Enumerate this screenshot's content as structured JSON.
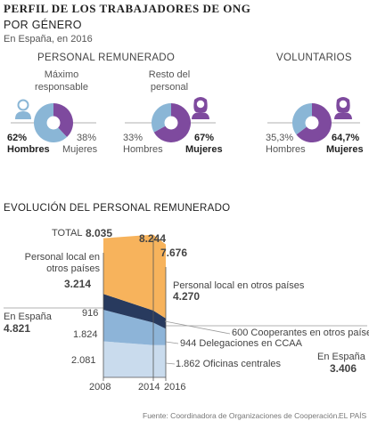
{
  "header": {
    "title": "PERFIL DE LOS TRABAJADORES DE ONG",
    "subtitle": "POR GÉNERO",
    "note": "En España, en 2016"
  },
  "sections": {
    "remunerado": "PERSONAL REMUNERADO",
    "voluntarios": "VOLUNTARIOS",
    "evolucion": "EVOLUCIÓN DEL PERSONAL REMUNERADO"
  },
  "colors": {
    "blue": "#8ab6d6",
    "purple": "#7e4a9e",
    "orange": "#f7b35c",
    "navy": "#283a5e",
    "midblue": "#8db4d8",
    "lightblue": "#c9dbed"
  },
  "chart_data": [
    {
      "type": "pie",
      "title": "Máximo responsable",
      "slices": [
        {
          "label": "Hombres",
          "value": 62,
          "display": "62%"
        },
        {
          "label": "Mujeres",
          "value": 38,
          "display": "38%"
        }
      ]
    },
    {
      "type": "pie",
      "title": "Resto del personal",
      "slices": [
        {
          "label": "Hombres",
          "value": 33,
          "display": "33%"
        },
        {
          "label": "Mujeres",
          "value": 67,
          "display": "67%"
        }
      ]
    },
    {
      "type": "pie",
      "title": "",
      "slices": [
        {
          "label": "Hombres",
          "value": 35.3,
          "display": "35,3%"
        },
        {
          "label": "Mujeres",
          "value": 64.7,
          "display": "64,7%"
        }
      ]
    },
    {
      "type": "area",
      "title": "EVOLUCIÓN DEL PERSONAL REMUNERADO",
      "x": [
        "2008",
        "2014",
        "2016"
      ],
      "total_label": "TOTAL",
      "totals": [
        "8.035",
        "8.244",
        "7.676"
      ],
      "en_espana_label": "En España",
      "en_espana_2008": "4.821",
      "en_espana_2016": "3.406",
      "local_label": "Personal local en otros países",
      "local_label_2008": "Personal local en otros países",
      "local_2008": "3.214",
      "local_2016": "4.270",
      "series": [
        {
          "name": "Oficinas centrales",
          "values": [
            2081,
            1862,
            1862
          ],
          "label_2008": "2.081",
          "label_2016": "1.862"
        },
        {
          "name": "Delegaciones en CCAA",
          "values": [
            1824,
            1300,
            944
          ],
          "label_2008": "1.824",
          "label_2016": "944"
        },
        {
          "name": "Cooperantes en otros países",
          "values": [
            916,
            700,
            600
          ],
          "label_2008": "916",
          "label_2016": "600"
        },
        {
          "name": "Personal local en otros países",
          "values": [
            3214,
            4382,
            4270
          ]
        }
      ],
      "label_cooperantes": "600 Cooperantes en otros países",
      "label_delegaciones": "944 Delegaciones en CCAA",
      "label_oficinas": "1.862 Oficinas centrales",
      "ylim": [
        0,
        8500
      ]
    }
  ],
  "footer": {
    "source": "Fuente: Coordinadora de Organizaciones de Cooperación.",
    "brand": "EL PAÍS"
  }
}
